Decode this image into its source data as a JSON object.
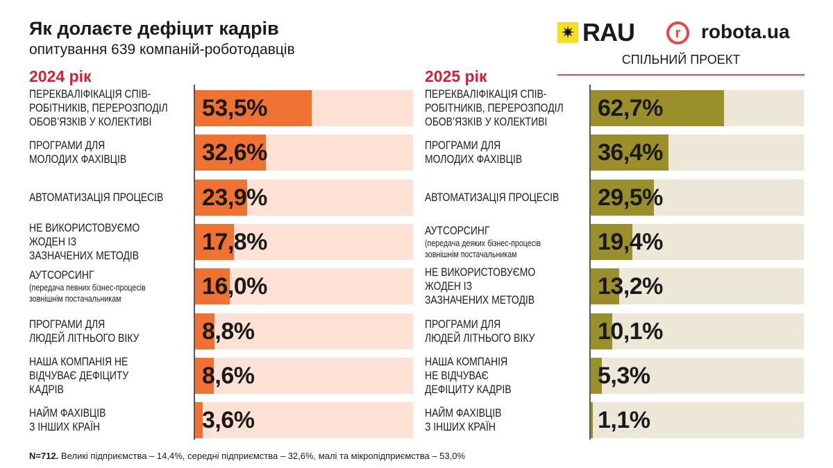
{
  "header": {
    "title": "Як долаєте дефіцит кадрів",
    "subtitle": "опитування 639 компаній-роботодавців"
  },
  "logos": {
    "rau": "RAU",
    "robota": "robota.ua",
    "joint": "СПІЛЬНИЙ ПРОЕКТ"
  },
  "colors": {
    "fill2024": "#f07232",
    "track2024": "#fde1d5",
    "fill2025": "#9b8f2b",
    "track2025": "#ece7d6",
    "accent": "#d81e35"
  },
  "footer": {
    "bold": "N=712.",
    "text": " Великі підприємства – 14,4%, середні підприємства – 32,6%, малі та мікропідприємства – 53,0%"
  },
  "chart_data": [
    {
      "type": "bar",
      "title": "2024 рік",
      "xlim": [
        0,
        100
      ],
      "categories": [
        {
          "label": "ПЕРЕКВАЛІФІКАЦІЯ СПІВ-\nРОБІТНИКІВ, ПЕРЕРОЗПОДІЛ\nОБОВ’ЯЗКІВ У КОЛЕКТИВІ",
          "note": "",
          "value": 53.5,
          "text": "53,5%"
        },
        {
          "label": "ПРОГРАМИ ДЛЯ\nМОЛОДИХ ФАХІВЦІВ",
          "note": "",
          "value": 32.6,
          "text": "32,6%"
        },
        {
          "label": "АВТОМАТИЗАЦІЯ ПРОЦЕСІВ",
          "note": "",
          "value": 23.9,
          "text": "23,9%"
        },
        {
          "label": "НЕ ВИКОРИСТОВУЄМО\nЖОДЕН ІЗ\nЗАЗНАЧЕНИХ МЕТОДІВ",
          "note": "",
          "value": 17.8,
          "text": "17,8%"
        },
        {
          "label": "АУТСОРСИНГ",
          "note": "(передача певних бізнес-процесів\nзовнішнім постачальникам",
          "value": 16.0,
          "text": "16,0%"
        },
        {
          "label": "ПРОГРАМИ ДЛЯ\nЛЮДЕЙ ЛІТНЬОГО ВІКУ",
          "note": "",
          "value": 8.8,
          "text": "8,8%"
        },
        {
          "label": "НАША КОМПАНІЯ НЕ\nВІДЧУВАЄ ДЕФІЦИТУ\nКАДРІВ",
          "note": "",
          "value": 8.6,
          "text": "8,6%"
        },
        {
          "label": "НАЙМ ФАХІВЦІВ\nЗ ІНШИХ КРАЇН",
          "note": "",
          "value": 3.6,
          "text": "3,6%"
        }
      ]
    },
    {
      "type": "bar",
      "title": "2025 рік",
      "xlim": [
        0,
        100
      ],
      "categories": [
        {
          "label": "ПЕРЕКВАЛІФІКАЦІЯ СПІВ-\nРОБІТНИКІВ, ПЕРЕРОЗПОДІЛ\nОБОВ’ЯЗКІВ У КОЛЕКТИВІ",
          "note": "",
          "value": 62.7,
          "text": "62,7%"
        },
        {
          "label": "ПРОГРАМИ ДЛЯ\nМОЛОДИХ ФАХІВЦІВ",
          "note": "",
          "value": 36.4,
          "text": "36,4%"
        },
        {
          "label": "АВТОМАТИЗАЦІЯ ПРОЦЕСІВ",
          "note": "",
          "value": 29.5,
          "text": "29,5%"
        },
        {
          "label": "АУТСОРСИНГ",
          "note": "(передача деяких бізнес-процесів\nзовнішнім постачальникам",
          "value": 19.4,
          "text": "19,4%"
        },
        {
          "label": "НЕ ВИКОРИСТОВУЄМО\nЖОДЕН ІЗ\nЗАЗНАЧЕНИХ МЕТОДІВ",
          "note": "",
          "value": 13.2,
          "text": "13,2%"
        },
        {
          "label": "ПРОГРАМИ ДЛЯ\nЛЮДЕЙ ЛІТНЬОГО ВІКУ",
          "note": "",
          "value": 10.1,
          "text": "10,1%"
        },
        {
          "label": "НАША КОМПАНІЯ\nНЕ ВІДЧУВАЄ\nДЕФІЦИТУ КАДРІВ",
          "note": "",
          "value": 5.3,
          "text": "5,3%"
        },
        {
          "label": "НАЙМ ФАХІВЦІВ\nЗ ІНШИХ КРАЇН",
          "note": "",
          "value": 1.1,
          "text": "1,1%"
        }
      ]
    }
  ]
}
